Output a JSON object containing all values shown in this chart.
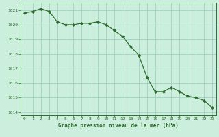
{
  "x": [
    0,
    1,
    2,
    3,
    4,
    5,
    6,
    7,
    8,
    9,
    10,
    11,
    12,
    13,
    14,
    15,
    16,
    17,
    18,
    19,
    20,
    21,
    22,
    23
  ],
  "y": [
    1020.8,
    1020.9,
    1021.1,
    1020.9,
    1020.2,
    1020.0,
    1020.0,
    1020.1,
    1020.1,
    1020.2,
    1020.0,
    1019.6,
    1019.2,
    1018.5,
    1017.9,
    1016.4,
    1015.4,
    1015.4,
    1015.7,
    1015.4,
    1015.1,
    1015.0,
    1014.8,
    1014.3
  ],
  "ylim": [
    1013.8,
    1021.5
  ],
  "xlim": [
    -0.5,
    23.5
  ],
  "yticks": [
    1014,
    1015,
    1016,
    1017,
    1018,
    1019,
    1020,
    1021
  ],
  "xticks": [
    0,
    1,
    2,
    3,
    4,
    5,
    6,
    7,
    8,
    9,
    10,
    11,
    12,
    13,
    14,
    15,
    16,
    17,
    18,
    19,
    20,
    21,
    22,
    23
  ],
  "line_color": "#2d6a2d",
  "marker_color": "#2d6a2d",
  "bg_color": "#cceedd",
  "grid_color": "#99ccbb",
  "xlabel": "Graphe pression niveau de la mer (hPa)",
  "xlabel_color": "#2d6a2d",
  "tick_color": "#2d6a2d",
  "axis_color": "#2d6a2d",
  "font_family": "monospace"
}
